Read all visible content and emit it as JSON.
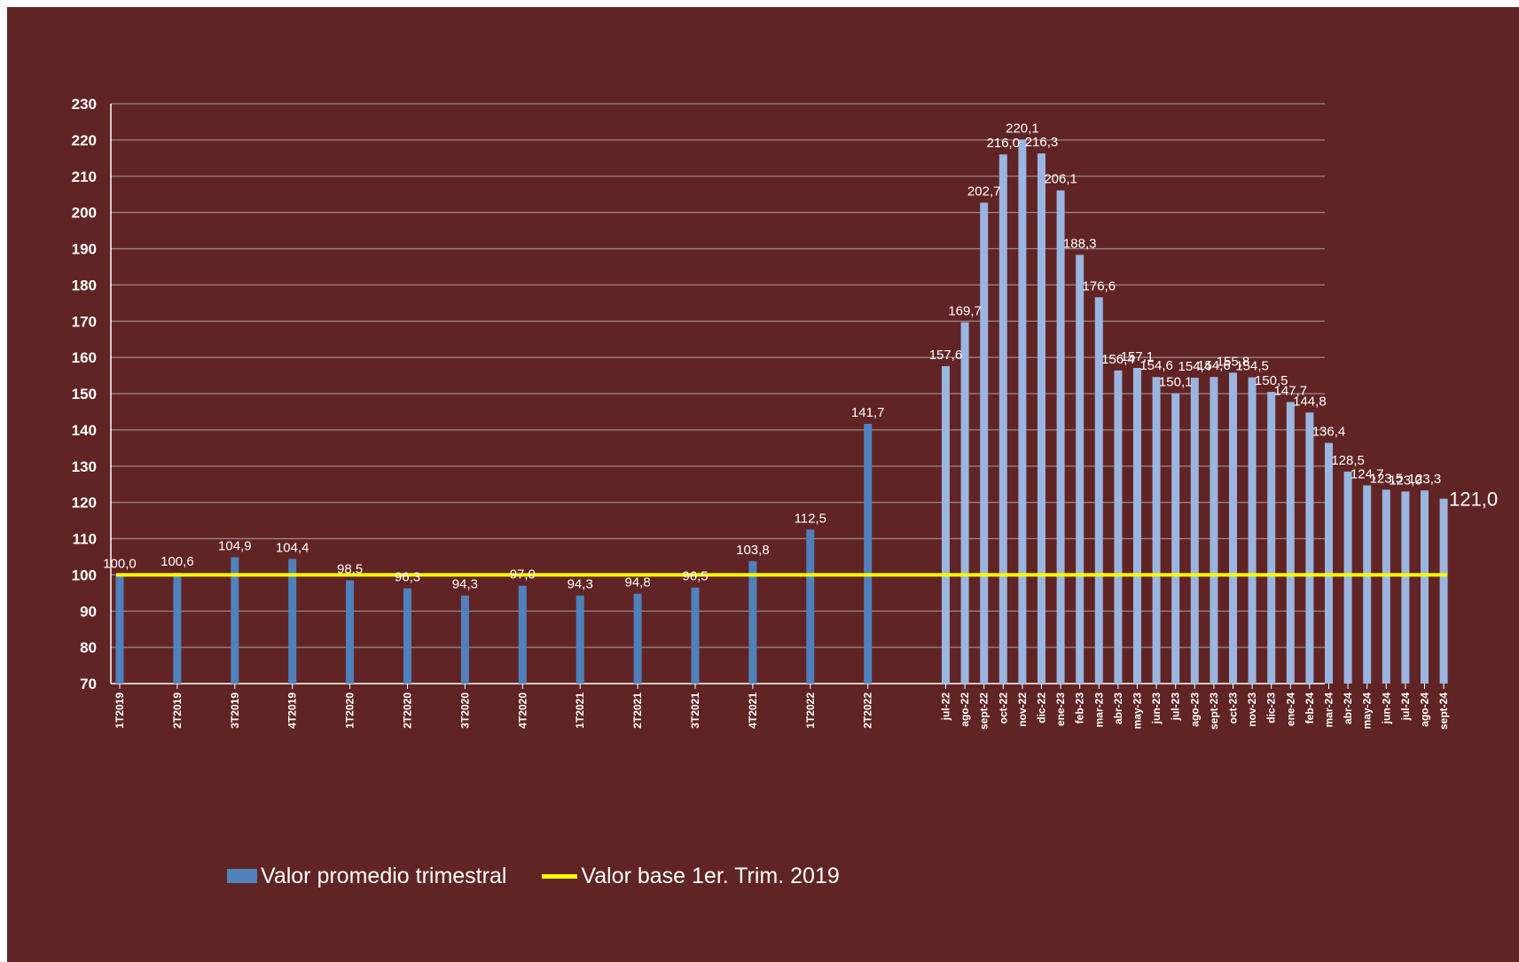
{
  "chart_data": {
    "type": "bar",
    "title": "",
    "xlabel": "",
    "ylabel": "",
    "ylim": [
      70,
      230
    ],
    "y_ticks": [
      70,
      80,
      90,
      100,
      110,
      120,
      130,
      140,
      150,
      160,
      170,
      180,
      190,
      200,
      210,
      220,
      230
    ],
    "grid": true,
    "legend_position": "bottom",
    "background_color": "#612424",
    "plot_background_color": "#612424",
    "gridline_color": "#9a8a8a",
    "categories": [
      "1T2019",
      "2T2019",
      "3T2019",
      "4T2019",
      "1T2020",
      "2T2020",
      "3T2020",
      "4T2020",
      "1T2021",
      "2T2021",
      "3T2021",
      "4T2021",
      "1T2022",
      "2T2022",
      "jul-22",
      "ago-22",
      "sept-22",
      "oct-22",
      "nov-22",
      "dic-22",
      "ene-23",
      "feb-23",
      "mar-23",
      "abr-23",
      "may-23",
      "jun-23",
      "jul-23",
      "ago-23",
      "sept-23",
      "oct-23",
      "nov-23",
      "dic-23",
      "ene-24",
      "feb-24",
      "mar-24",
      "abr-24",
      "may-24",
      "jun-24",
      "jul-24",
      "ago-24",
      "sept-24"
    ],
    "series": [
      {
        "name": "Valor promedio trimestral",
        "type": "bar",
        "color": "#4f81bd",
        "light_color": "#9ab5e0",
        "values": [
          100.0,
          100.6,
          104.9,
          104.4,
          98.5,
          96.3,
          94.3,
          97.0,
          94.3,
          94.8,
          96.5,
          103.8,
          112.5,
          141.7,
          157.6,
          169.7,
          202.7,
          216.0,
          220.1,
          216.3,
          206.1,
          188.3,
          176.6,
          156.4,
          157.1,
          154.6,
          150.1,
          154.4,
          154.6,
          155.8,
          154.5,
          150.5,
          147.7,
          144.8,
          136.4,
          128.5,
          124.7,
          123.5,
          123.0,
          123.3,
          121.0
        ],
        "labels": [
          "100,0",
          "100,6",
          "104,9",
          "104,4",
          "98,5",
          "96,3",
          "94,3",
          "97,0",
          "94,3",
          "94,8",
          "96,5",
          "103,8",
          "112,5",
          "141,7",
          "157,6",
          "169,7",
          "202,7",
          "216,0",
          "220,1",
          "216,3",
          "206,1",
          "188,3",
          "176,6",
          "156,4",
          "157,1",
          "154,6",
          "150,1",
          "154,4",
          "154,6",
          "155,8",
          "154,5",
          "150,5",
          "147,7",
          "144,8",
          "136,4",
          "128,5",
          "124,7",
          "123,5",
          "123,0",
          "123,3",
          "121,0"
        ]
      },
      {
        "name": "Valor base 1er. Trim. 2019",
        "type": "line",
        "color": "#ffff00",
        "value": 100
      }
    ]
  }
}
